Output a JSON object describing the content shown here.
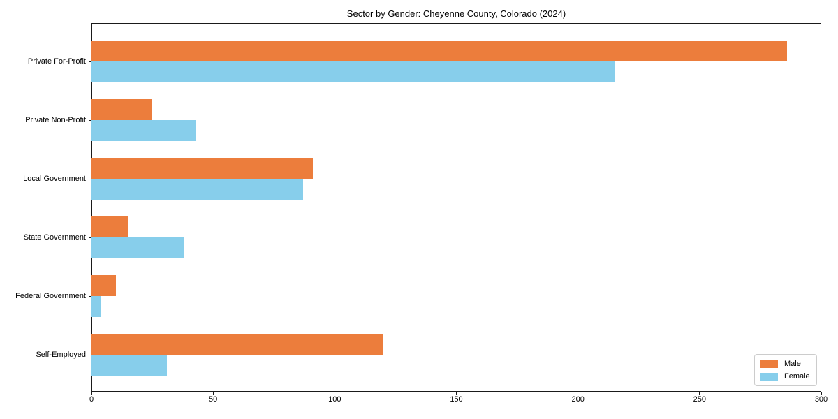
{
  "chart_data": {
    "type": "bar",
    "orientation": "horizontal",
    "title": "Sector by Gender: Cheyenne County, Colorado (2024)",
    "categories": [
      "Private For-Profit",
      "Private Non-Profit",
      "Local Government",
      "State Government",
      "Federal Government",
      "Self-Employed"
    ],
    "series": [
      {
        "name": "Male",
        "color": "#EC7D3C",
        "values": [
          286,
          25,
          91,
          15,
          10,
          120
        ]
      },
      {
        "name": "Female",
        "color": "#87CEEB",
        "values": [
          215,
          43,
          87,
          38,
          4,
          31
        ]
      }
    ],
    "xlim": [
      0,
      300
    ],
    "xticks": [
      0,
      50,
      100,
      150,
      200,
      250,
      300
    ],
    "xlabel": "",
    "ylabel": "",
    "grid": false,
    "legend_position": "lower right",
    "background_color": "#ffffff",
    "spine_color": "#1a1a1a"
  }
}
